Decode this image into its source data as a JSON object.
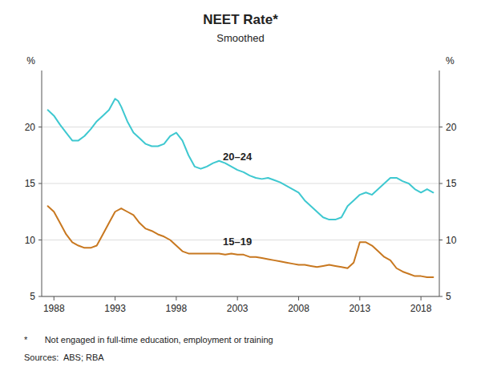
{
  "chart_data": {
    "type": "line",
    "title": "NEET Rate*",
    "subtitle": "Smoothed",
    "y_label": "%",
    "y2_label": "%",
    "footnote": "*       Not engaged in full-time education, employment or training",
    "sources": "Sources:  ABS; RBA",
    "xlim": [
      1987.0,
      2019.5
    ],
    "xticks": [
      1988,
      1993,
      1998,
      2003,
      2008,
      2013,
      2018
    ],
    "ylim": [
      5,
      25
    ],
    "yticks": [
      5,
      10,
      15,
      20
    ],
    "y2lim": [
      5,
      25
    ],
    "y2ticks": [
      5,
      10,
      15,
      20
    ],
    "grid": true,
    "series": [
      {
        "name": "20–24",
        "color": "#3EC8D0",
        "x": [
          1987.5,
          1988.0,
          1988.5,
          1989.0,
          1989.5,
          1990.0,
          1990.5,
          1991.0,
          1991.5,
          1992.0,
          1992.5,
          1993.0,
          1993.25,
          1993.5,
          1994.0,
          1994.5,
          1995.0,
          1995.5,
          1996.0,
          1996.5,
          1997.0,
          1997.5,
          1998.0,
          1998.5,
          1999.0,
          1999.5,
          2000.0,
          2000.5,
          2001.0,
          2001.5,
          2002.0,
          2002.5,
          2003.0,
          2003.5,
          2004.0,
          2004.5,
          2005.0,
          2005.5,
          2006.0,
          2006.5,
          2007.0,
          2007.5,
          2008.0,
          2008.5,
          2009.0,
          2009.5,
          2010.0,
          2010.5,
          2011.0,
          2011.5,
          2012.0,
          2012.5,
          2013.0,
          2013.5,
          2014.0,
          2014.5,
          2015.0,
          2015.5,
          2016.0,
          2016.5,
          2017.0,
          2017.5,
          2018.0,
          2018.5,
          2019.0
        ],
        "values": [
          21.5,
          21.0,
          20.2,
          19.5,
          18.8,
          18.8,
          19.2,
          19.8,
          20.5,
          21.0,
          21.5,
          22.5,
          22.3,
          21.8,
          20.5,
          19.5,
          19.0,
          18.5,
          18.3,
          18.3,
          18.5,
          19.2,
          19.5,
          18.8,
          17.5,
          16.5,
          16.3,
          16.5,
          16.8,
          17.0,
          16.8,
          16.5,
          16.2,
          16.0,
          15.7,
          15.5,
          15.4,
          15.5,
          15.3,
          15.1,
          14.8,
          14.5,
          14.2,
          13.5,
          13.0,
          12.5,
          12.0,
          11.8,
          11.8,
          12.0,
          13.0,
          13.5,
          14.0,
          14.2,
          14.0,
          14.5,
          15.0,
          15.5,
          15.5,
          15.2,
          15.0,
          14.5,
          14.2,
          14.5,
          14.2
        ]
      },
      {
        "name": "15–19",
        "color": "#C87820",
        "x": [
          1987.5,
          1988.0,
          1988.5,
          1989.0,
          1989.5,
          1990.0,
          1990.5,
          1991.0,
          1991.5,
          1992.0,
          1992.5,
          1993.0,
          1993.5,
          1994.0,
          1994.5,
          1995.0,
          1995.5,
          1996.0,
          1996.5,
          1997.0,
          1997.5,
          1998.0,
          1998.5,
          1999.0,
          1999.5,
          2000.0,
          2000.5,
          2001.0,
          2001.5,
          2002.0,
          2002.5,
          2003.0,
          2003.5,
          2004.0,
          2004.5,
          2005.0,
          2005.5,
          2006.0,
          2006.5,
          2007.0,
          2007.5,
          2008.0,
          2008.5,
          2009.0,
          2009.5,
          2010.0,
          2010.5,
          2011.0,
          2011.5,
          2012.0,
          2012.5,
          2013.0,
          2013.5,
          2014.0,
          2014.5,
          2015.0,
          2015.5,
          2016.0,
          2016.5,
          2017.0,
          2017.5,
          2018.0,
          2018.5,
          2019.0
        ],
        "values": [
          13.0,
          12.5,
          11.5,
          10.5,
          9.8,
          9.5,
          9.3,
          9.3,
          9.5,
          10.5,
          11.5,
          12.5,
          12.8,
          12.5,
          12.2,
          11.5,
          11.0,
          10.8,
          10.5,
          10.3,
          10.0,
          9.5,
          9.0,
          8.8,
          8.8,
          8.8,
          8.8,
          8.8,
          8.8,
          8.7,
          8.8,
          8.7,
          8.7,
          8.5,
          8.5,
          8.4,
          8.3,
          8.2,
          8.1,
          8.0,
          7.9,
          7.8,
          7.8,
          7.7,
          7.6,
          7.7,
          7.8,
          7.7,
          7.6,
          7.5,
          8.0,
          9.8,
          9.8,
          9.5,
          9.0,
          8.5,
          8.2,
          7.5,
          7.2,
          7.0,
          6.8,
          6.8,
          6.7,
          6.7
        ]
      }
    ]
  }
}
